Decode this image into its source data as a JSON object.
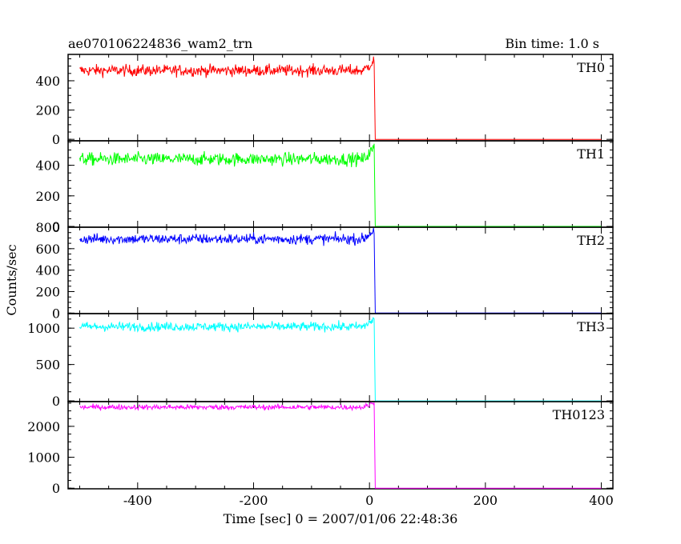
{
  "chart_data": {
    "type": "line",
    "title": "ae070106224836_wam2_trn",
    "subtitle": "Bin time: 1.0 s",
    "xlabel": "Time [sec] 0 = 2007/01/06 22:48:36",
    "ylabel": "Counts/sec",
    "xlim": [
      -520,
      420
    ],
    "xticks": [
      -400,
      -200,
      0,
      200,
      400
    ],
    "grid": false,
    "panels": [
      {
        "name": "TH0",
        "color": "#ff0000",
        "ylim": [
          -10,
          580
        ],
        "yticks": [
          0,
          200,
          400
        ],
        "pre_level": 470,
        "noise": 28,
        "drop_x": 8,
        "post_level": 0
      },
      {
        "name": "TH1",
        "color": "#00ff00",
        "ylim": [
          -5,
          560
        ],
        "yticks": [
          0,
          200,
          400
        ],
        "pre_level": 440,
        "noise": 30,
        "drop_x": 8,
        "post_level": 0
      },
      {
        "name": "TH2",
        "color": "#0000ff",
        "ylim": [
          -5,
          800
        ],
        "yticks": [
          0,
          200,
          400,
          600,
          800
        ],
        "pre_level": 690,
        "noise": 35,
        "drop_x": 8,
        "post_level": 0
      },
      {
        "name": "TH3",
        "color": "#00ffff",
        "ylim": [
          -10,
          1200
        ],
        "yticks": [
          0,
          500,
          1000
        ],
        "pre_level": 1020,
        "noise": 45,
        "drop_x": 8,
        "post_level": 0
      },
      {
        "name": "TH0123",
        "color": "#ff00ff",
        "ylim": [
          -20,
          2800
        ],
        "yticks": [
          0,
          1000,
          2000
        ],
        "pre_level": 2620,
        "noise": 60,
        "drop_x": 8,
        "post_level": 0
      }
    ]
  }
}
